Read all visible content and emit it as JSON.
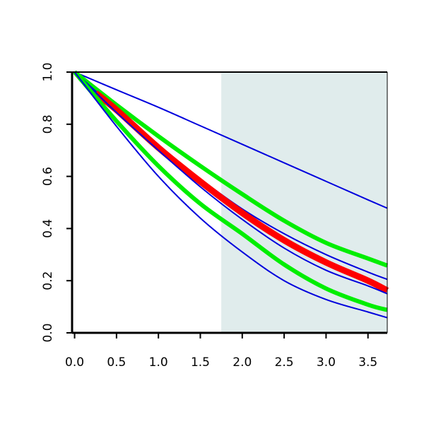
{
  "chart_data": {
    "type": "line",
    "title": "",
    "xlabel": "",
    "ylabel": "",
    "xlim": [
      -0.03,
      3.73
    ],
    "ylim": [
      0.0,
      1.0
    ],
    "x_ticks": [
      0.0,
      0.5,
      1.0,
      1.5,
      2.0,
      2.5,
      3.0,
      3.5
    ],
    "y_ticks": [
      0.0,
      0.2,
      0.4,
      0.6,
      0.8,
      1.0
    ],
    "x_tick_labels": [
      "0.0",
      "0.5",
      "1.0",
      "1.5",
      "2.0",
      "2.5",
      "3.0",
      "3.5"
    ],
    "y_tick_labels": [
      "0.0",
      "0.2",
      "0.4",
      "0.6",
      "0.8",
      "1.0"
    ],
    "shaded_region": {
      "x_from": 1.75,
      "x_to": 3.73,
      "color": "#e0ecec"
    },
    "grid": false,
    "legend": "none",
    "series": [
      {
        "color": "#0000dd",
        "style": "thin",
        "x": [
          0,
          0.5,
          1.0,
          1.5,
          2.0,
          2.5,
          3.0,
          3.5,
          3.73
        ],
        "y": [
          1.0,
          0.932,
          0.865,
          0.794,
          0.723,
          0.652,
          0.581,
          0.51,
          0.478
        ]
      },
      {
        "color": "#00ee00",
        "style": "thick",
        "x": [
          0,
          0.5,
          1.0,
          1.5,
          2.0,
          2.5,
          3.0,
          3.5,
          3.73
        ],
        "y": [
          1.0,
          0.874,
          0.754,
          0.64,
          0.532,
          0.43,
          0.345,
          0.285,
          0.258
        ]
      },
      {
        "color": "#0000dd",
        "style": "thin",
        "x": [
          0,
          0.5,
          1.0,
          1.5,
          2.0,
          2.5,
          3.0,
          3.5,
          3.73
        ],
        "y": [
          1.0,
          0.855,
          0.715,
          0.59,
          0.475,
          0.38,
          0.3,
          0.233,
          0.205
        ]
      },
      {
        "color": "#ff0000",
        "style": "thickest",
        "x": [
          0.25,
          0.5,
          1.0,
          1.5,
          2.0,
          2.5,
          3.0,
          3.5,
          3.73
        ],
        "y": [
          0.92,
          0.855,
          0.71,
          0.58,
          0.46,
          0.355,
          0.27,
          0.2,
          0.162
        ]
      },
      {
        "color": "#0000dd",
        "style": "thin",
        "x": [
          0,
          0.5,
          1.0,
          1.5,
          2.0,
          2.5,
          3.0,
          3.5,
          3.73
        ],
        "y": [
          1.0,
          0.845,
          0.7,
          0.56,
          0.435,
          0.325,
          0.24,
          0.18,
          0.15
        ]
      },
      {
        "color": "#00ee00",
        "style": "thick",
        "x": [
          0,
          0.5,
          1.0,
          1.5,
          2.0,
          2.5,
          3.0,
          3.5,
          3.73
        ],
        "y": [
          1.0,
          0.812,
          0.64,
          0.495,
          0.38,
          0.262,
          0.17,
          0.108,
          0.088
        ]
      },
      {
        "color": "#0000dd",
        "style": "thin",
        "x": [
          0,
          0.5,
          1.0,
          1.5,
          2.0,
          2.5,
          3.0,
          3.5,
          3.73
        ],
        "y": [
          1.0,
          0.792,
          0.6,
          0.44,
          0.31,
          0.2,
          0.128,
          0.08,
          0.058
        ]
      }
    ]
  }
}
